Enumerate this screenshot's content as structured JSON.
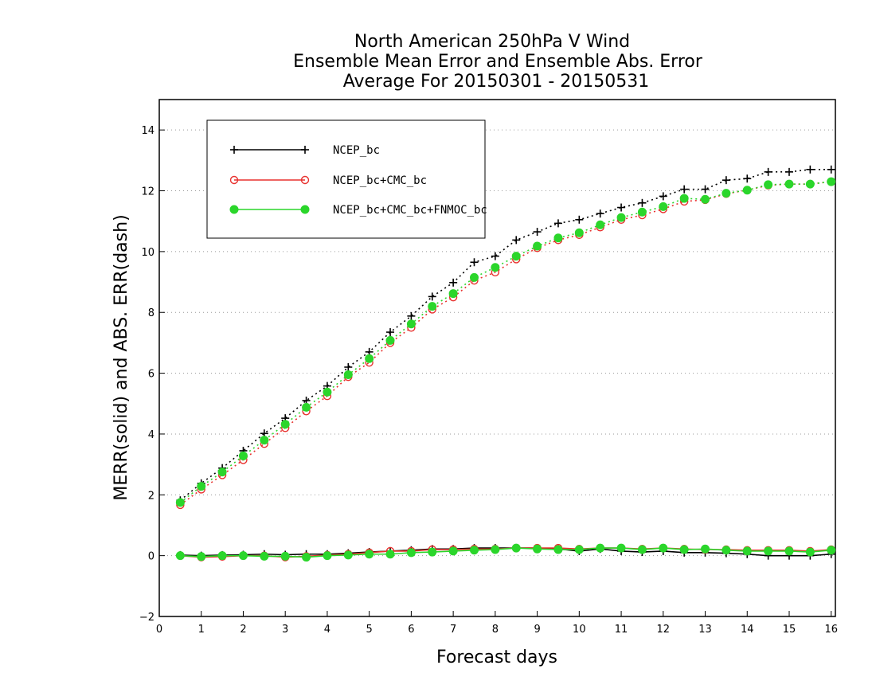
{
  "chart_data": {
    "type": "line",
    "title": [
      "North American 250hPa V Wind",
      "Ensemble Mean Error and Ensemble Abs. Error",
      "Average For 20150301 - 20150531"
    ],
    "xlabel": "Forecast days",
    "ylabel": "MERR(solid) and ABS. ERR(dash)",
    "xlim": [
      0,
      16.1
    ],
    "ylim": [
      -2,
      15
    ],
    "x_ticks": [
      0,
      1,
      2,
      3,
      4,
      5,
      6,
      7,
      8,
      9,
      10,
      11,
      12,
      13,
      14,
      15,
      16
    ],
    "y_ticks": [
      -2,
      0,
      2,
      4,
      6,
      8,
      10,
      12,
      14
    ],
    "grid": "horizontal-dotted",
    "legend_position": "top-left",
    "x": [
      0.5,
      1,
      1.5,
      2,
      2.5,
      3,
      3.5,
      4,
      4.5,
      5,
      5.5,
      6,
      6.5,
      7,
      7.5,
      8,
      8.5,
      9,
      9.5,
      10,
      10.5,
      11,
      11.5,
      12,
      12.5,
      13,
      13.5,
      14,
      14.5,
      15,
      15.5,
      16
    ],
    "series": [
      {
        "name": "NCEP_bc",
        "color": "#000000",
        "marker": "plus",
        "abs_error": [
          1.82,
          2.38,
          2.88,
          3.45,
          4.02,
          4.52,
          5.1,
          5.58,
          6.2,
          6.7,
          7.35,
          7.88,
          8.52,
          8.98,
          9.65,
          9.85,
          10.38,
          10.65,
          10.93,
          11.05,
          11.25,
          11.45,
          11.6,
          11.82,
          12.05,
          12.05,
          12.35,
          12.4,
          12.62,
          12.62,
          12.7,
          12.7
        ],
        "mean_error": [
          0.02,
          0.0,
          0.02,
          0.03,
          0.05,
          0.03,
          0.05,
          0.05,
          0.08,
          0.12,
          0.15,
          0.18,
          0.22,
          0.22,
          0.25,
          0.25,
          0.25,
          0.25,
          0.22,
          0.15,
          0.22,
          0.15,
          0.12,
          0.15,
          0.1,
          0.1,
          0.08,
          0.05,
          0.0,
          0.0,
          0.0,
          0.05
        ]
      },
      {
        "name": "NCEP_bc+CMC_bc",
        "color": "#e8312e",
        "marker": "open-circle",
        "abs_error": [
          1.67,
          2.18,
          2.65,
          3.15,
          3.68,
          4.2,
          4.75,
          5.25,
          5.88,
          6.35,
          7.0,
          7.5,
          8.1,
          8.5,
          9.05,
          9.32,
          9.75,
          10.12,
          10.38,
          10.55,
          10.8,
          11.05,
          11.2,
          11.4,
          11.65,
          11.7,
          11.9,
          12.02,
          12.18,
          12.22,
          12.22,
          12.3
        ],
        "mean_error": [
          0.0,
          -0.05,
          -0.03,
          0.0,
          0.0,
          -0.05,
          -0.02,
          0.02,
          0.05,
          0.1,
          0.15,
          0.15,
          0.2,
          0.2,
          0.22,
          0.22,
          0.25,
          0.25,
          0.25,
          0.22,
          0.25,
          0.25,
          0.22,
          0.25,
          0.22,
          0.2,
          0.2,
          0.18,
          0.18,
          0.18,
          0.15,
          0.2
        ]
      },
      {
        "name": "NCEP_bc+CMC_bc+FNMOC_bc",
        "color": "#2bd62b",
        "marker": "filled-circle",
        "abs_error": [
          1.75,
          2.28,
          2.75,
          3.28,
          3.8,
          4.32,
          4.88,
          5.38,
          5.95,
          6.48,
          7.08,
          7.62,
          8.2,
          8.62,
          9.15,
          9.48,
          9.85,
          10.18,
          10.45,
          10.62,
          10.88,
          11.12,
          11.3,
          11.48,
          11.75,
          11.72,
          11.92,
          12.02,
          12.2,
          12.22,
          12.22,
          12.3
        ],
        "mean_error": [
          0.0,
          -0.03,
          0.0,
          0.0,
          -0.02,
          -0.02,
          -0.05,
          0.0,
          0.02,
          0.05,
          0.05,
          0.1,
          0.12,
          0.15,
          0.18,
          0.2,
          0.25,
          0.22,
          0.2,
          0.2,
          0.25,
          0.25,
          0.2,
          0.25,
          0.2,
          0.22,
          0.18,
          0.15,
          0.15,
          0.15,
          0.12,
          0.18
        ]
      }
    ]
  }
}
